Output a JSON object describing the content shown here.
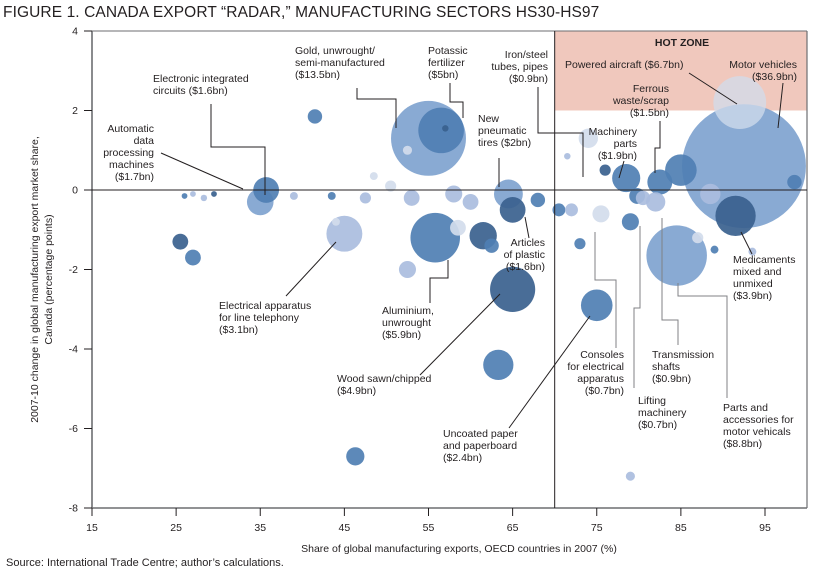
{
  "figure": {
    "title": "FIGURE 1. CANADA EXPORT “RADAR,” MANUFACTURING SECTORS HS30-HS97",
    "source": "Source: International Trade Centre; author’s calculations."
  },
  "chart_data": {
    "type": "scatter",
    "subtype": "bubble",
    "title": "FIGURE 1. CANADA EXPORT “RADAR,” MANUFACTURING SECTORS HS30-HS97",
    "xlabel": "Share of global manufacturing exports, OECD countries in 2007 (%)",
    "ylabel": "2007-10 change in global manufacturing export market share, Canada (percentage points)",
    "xlim": [
      15,
      100
    ],
    "ylim": [
      -8,
      4
    ],
    "xticks": [
      15,
      25,
      35,
      45,
      55,
      65,
      75,
      85,
      95
    ],
    "yticks": [
      4,
      2,
      0,
      -2,
      -4,
      -6,
      -8
    ],
    "grid": false,
    "reference_lines": {
      "x": 70,
      "y": 0
    },
    "hot_zone": {
      "label": "HOT ZONE",
      "x_range": [
        70,
        100
      ],
      "y_range": [
        2,
        4
      ],
      "color": "#f0c8bd"
    },
    "colors": {
      "dark": "#3a618e",
      "mid": "#4f7fb3",
      "light": "#7fa3cf",
      "pale": "#aabdde",
      "lightest": "#d2dcec"
    },
    "labeled_points": [
      {
        "name": "Motor vehicles",
        "value_label": "($36.9bn)",
        "x": 92.5,
        "y": 0.6,
        "size_bn": 36.9,
        "shade": "light"
      },
      {
        "name": "Powered aircraft",
        "value_label": "($6.7bn)",
        "x": 92,
        "y": 2.2,
        "size_bn": 6.7,
        "shade": "lightest"
      },
      {
        "name": "Ferrous waste/scrap",
        "value_label": "($1.5bn)",
        "x": 82.5,
        "y": 0.2,
        "size_bn": 1.5,
        "shade": "mid"
      },
      {
        "name": "Machinery parts",
        "value_label": "($1.9bn)",
        "x": 78.5,
        "y": 0.3,
        "size_bn": 1.9,
        "shade": "mid"
      },
      {
        "name": "Iron/steel tubes, pipes",
        "value_label": "($0.9bn)",
        "x": 74,
        "y": 1.3,
        "size_bn": 0.9,
        "shade": "lightest"
      },
      {
        "name": "Gold, unwrought/semi-manufactured",
        "value_label": "($13.5bn)",
        "x": 55,
        "y": 1.3,
        "size_bn": 13.5,
        "shade": "light"
      },
      {
        "name": "Potassic fertilizer",
        "value_label": "($5bn)",
        "x": 56.5,
        "y": 1.5,
        "size_bn": 5.0,
        "shade": "mid"
      },
      {
        "name": "New pneumatic tires",
        "value_label": "($2bn)",
        "x": 64.5,
        "y": -0.1,
        "size_bn": 2.0,
        "shade": "light"
      },
      {
        "name": "Electronic integrated circuits",
        "value_label": "($1.6bn)",
        "x": 35.7,
        "y": 0,
        "size_bn": 1.6,
        "shade": "mid"
      },
      {
        "name": "Automatic data processing machines",
        "value_label": "($1.7bn)",
        "x": 35,
        "y": -0.3,
        "size_bn": 1.7,
        "shade": "light"
      },
      {
        "name": "Electrical apparatus for line telephony",
        "value_label": "($3.1bn)",
        "x": 45,
        "y": -1.1,
        "size_bn": 3.1,
        "shade": "pale"
      },
      {
        "name": "Aluminium, unwrought",
        "value_label": "($5.9bn)",
        "x": 55.8,
        "y": -1.2,
        "size_bn": 5.9,
        "shade": "mid"
      },
      {
        "name": "Articles of plastic",
        "value_label": "($1.6bn)",
        "x": 65,
        "y": -0.5,
        "size_bn": 1.6,
        "shade": "dark"
      },
      {
        "name": "Wood sawn/chipped",
        "value_label": "($4.9bn)",
        "x": 65,
        "y": -2.5,
        "size_bn": 4.9,
        "shade": "dark"
      },
      {
        "name": "Uncoated paper and paperboard",
        "value_label": "($2.4bn)",
        "x": 75,
        "y": -2.9,
        "size_bn": 2.4,
        "shade": "mid"
      },
      {
        "name": "Consoles for electrical apparatus",
        "value_label": "($0.7bn)",
        "x": 75.5,
        "y": -0.6,
        "size_bn": 0.7,
        "shade": "lightest"
      },
      {
        "name": "Lifting machinery",
        "value_label": "($0.7bn)",
        "x": 79,
        "y": -0.8,
        "size_bn": 0.7,
        "shade": "mid"
      },
      {
        "name": "Transmission shafts",
        "value_label": "($0.9bn)",
        "x": 82,
        "y": -0.3,
        "size_bn": 0.9,
        "shade": "pale"
      },
      {
        "name": "Medicaments mixed and unmixed",
        "value_label": "($3.9bn)",
        "x": 91.5,
        "y": -0.65,
        "size_bn": 3.9,
        "shade": "dark"
      },
      {
        "name": "Parts and accessories for motor vehicals",
        "value_label": "($8.8bn)",
        "x": 84.5,
        "y": -1.65,
        "size_bn": 8.8,
        "shade": "light"
      }
    ],
    "other_points": [
      {
        "x": 41.5,
        "y": 1.85,
        "size_bn": 0.5,
        "shade": "mid"
      },
      {
        "x": 52.5,
        "y": 1.0,
        "size_bn": 0.2,
        "shade": "lightest"
      },
      {
        "x": 57,
        "y": 1.55,
        "size_bn": 0.1,
        "shade": "dark"
      },
      {
        "x": 25.5,
        "y": -1.3,
        "size_bn": 0.6,
        "shade": "dark"
      },
      {
        "x": 27,
        "y": -1.7,
        "size_bn": 0.6,
        "shade": "mid"
      },
      {
        "x": 46.3,
        "y": -6.7,
        "size_bn": 0.8,
        "shade": "mid"
      },
      {
        "x": 63.3,
        "y": -4.4,
        "size_bn": 2.2,
        "shade": "mid"
      },
      {
        "x": 52.5,
        "y": -2.0,
        "size_bn": 0.7,
        "shade": "pale"
      },
      {
        "x": 79,
        "y": -7.2,
        "size_bn": 0.2,
        "shade": "pale"
      },
      {
        "x": 61.5,
        "y": -1.15,
        "size_bn": 1.8,
        "shade": "dark"
      },
      {
        "x": 58.5,
        "y": -0.95,
        "size_bn": 0.6,
        "shade": "lightest"
      },
      {
        "x": 62.5,
        "y": -1.4,
        "size_bn": 0.5,
        "shade": "mid"
      },
      {
        "x": 73,
        "y": -1.35,
        "size_bn": 0.3,
        "shade": "mid"
      },
      {
        "x": 80.5,
        "y": -0.2,
        "size_bn": 0.5,
        "shade": "pale"
      },
      {
        "x": 85,
        "y": 0.5,
        "size_bn": 2.4,
        "shade": "mid"
      },
      {
        "x": 98.5,
        "y": 0.2,
        "size_bn": 0.5,
        "shade": "mid"
      },
      {
        "x": 89,
        "y": -1.5,
        "size_bn": 0.15,
        "shade": "mid"
      },
      {
        "x": 93.5,
        "y": -1.55,
        "size_bn": 0.15,
        "shade": "pale"
      },
      {
        "x": 79.8,
        "y": -0.15,
        "size_bn": 0.6,
        "shade": "mid"
      },
      {
        "x": 71.5,
        "y": 0.85,
        "size_bn": 0.1,
        "shade": "pale"
      },
      {
        "x": 50.5,
        "y": 0.1,
        "size_bn": 0.3,
        "shade": "lightest"
      },
      {
        "x": 53,
        "y": -0.2,
        "size_bn": 0.6,
        "shade": "pale"
      },
      {
        "x": 58,
        "y": -0.1,
        "size_bn": 0.7,
        "shade": "pale"
      },
      {
        "x": 60,
        "y": -0.3,
        "size_bn": 0.6,
        "shade": "pale"
      },
      {
        "x": 68,
        "y": -0.25,
        "size_bn": 0.5,
        "shade": "mid"
      },
      {
        "x": 70.5,
        "y": -0.5,
        "size_bn": 0.4,
        "shade": "mid"
      },
      {
        "x": 72,
        "y": -0.5,
        "size_bn": 0.4,
        "shade": "pale"
      },
      {
        "x": 76,
        "y": 0.5,
        "size_bn": 0.3,
        "shade": "dark"
      },
      {
        "x": 88.5,
        "y": -0.1,
        "size_bn": 1.0,
        "shade": "pale"
      },
      {
        "x": 87,
        "y": -1.2,
        "size_bn": 0.3,
        "shade": "lightest"
      },
      {
        "x": 39,
        "y": -0.15,
        "size_bn": 0.15,
        "shade": "pale"
      },
      {
        "x": 43.5,
        "y": -0.15,
        "size_bn": 0.15,
        "shade": "mid"
      },
      {
        "x": 47.5,
        "y": -0.2,
        "size_bn": 0.3,
        "shade": "pale"
      },
      {
        "x": 48.5,
        "y": 0.35,
        "size_bn": 0.15,
        "shade": "lightest"
      },
      {
        "x": 44,
        "y": -0.8,
        "size_bn": 0.15,
        "shade": "lightest"
      },
      {
        "x": 26,
        "y": -0.15,
        "size_bn": 0.08,
        "shade": "mid"
      },
      {
        "x": 27,
        "y": -0.1,
        "size_bn": 0.08,
        "shade": "pale"
      },
      {
        "x": 28.3,
        "y": -0.2,
        "size_bn": 0.1,
        "shade": "pale"
      },
      {
        "x": 29.5,
        "y": -0.1,
        "size_bn": 0.08,
        "shade": "dark"
      }
    ],
    "annotations": [
      "HOT ZONE",
      "Powered aircraft ($6.7bn)",
      "Motor vehicles ($36.9bn)",
      "Ferrous waste/scrap ($1.5bn)",
      "Machinery parts ($1.9bn)",
      "Iron/steel tubes, pipes ($0.9bn)",
      "Potassic fertilizer ($5bn)",
      "Gold, unwrought/semi-manufactured ($13.5bn)",
      "New pneumatic tires ($2bn)",
      "Electronic integrated circuits ($1.6bn)",
      "Automatic data processing machines ($1.7bn)",
      "Electrical apparatus for line telephony ($3.1bn)",
      "Aluminium, unwrought ($5.9bn)",
      "Articles of plastic ($1.6bn)",
      "Wood sawn/chipped ($4.9bn)",
      "Uncoated paper and paperboard ($2.4bn)",
      "Consoles for electrical apparatus ($0.7bn)",
      "Lifting machinery ($0.7bn)",
      "Transmission shafts ($0.9bn)",
      "Medicaments mixed and unmixed ($3.9bn)",
      "Parts and accessories for motor vehicals ($8.8bn)"
    ]
  },
  "labels": {
    "hot_zone": "HOT ZONE",
    "powered_aircraft": [
      "Powered aircraft ($6.7bn)"
    ],
    "motor_vehicles": [
      "Motor vehicles",
      "($36.9bn)"
    ],
    "ferrous": [
      "Ferrous",
      "waste/scrap",
      "($1.5bn)"
    ],
    "machinery_parts": [
      "Machinery",
      "parts",
      "($1.9bn)"
    ],
    "iron_steel": [
      "Iron/steel",
      "tubes, pipes",
      "($0.9bn)"
    ],
    "potassic": [
      "Potassic",
      "fertilizer",
      "($5bn)"
    ],
    "gold": [
      "Gold, unwrought/",
      "semi-manufactured",
      "($13.5bn)"
    ],
    "tires": [
      "New",
      "pneumatic",
      "tires ($2bn)"
    ],
    "circuits": [
      "Electronic integrated",
      "circuits ($1.6bn)"
    ],
    "adp": [
      "Automatic",
      "data",
      "processing",
      "machines",
      "($1.7bn)"
    ],
    "telephony": [
      "Electrical apparatus",
      "for line telephony",
      "($3.1bn)"
    ],
    "aluminium": [
      "Aluminium,",
      "unwrought",
      "($5.9bn)"
    ],
    "plastic": [
      "Articles",
      "of plastic",
      "($1.6bn)"
    ],
    "wood": [
      "Wood sawn/chipped",
      "($4.9bn)"
    ],
    "paper": [
      "Uncoated paper",
      "and paperboard",
      "($2.4bn)"
    ],
    "consoles": [
      "Consoles",
      "for electrical",
      "apparatus",
      "($0.7bn)"
    ],
    "lifting": [
      "Lifting",
      "machinery",
      "($0.7bn)"
    ],
    "shafts": [
      "Transmission",
      "shafts",
      "($0.9bn)"
    ],
    "medicaments": [
      "Medicaments",
      "mixed and",
      "unmixed",
      "($3.9bn)"
    ],
    "parts": [
      "Parts and",
      "accessories for",
      "motor vehicals",
      "($8.8bn)"
    ]
  }
}
